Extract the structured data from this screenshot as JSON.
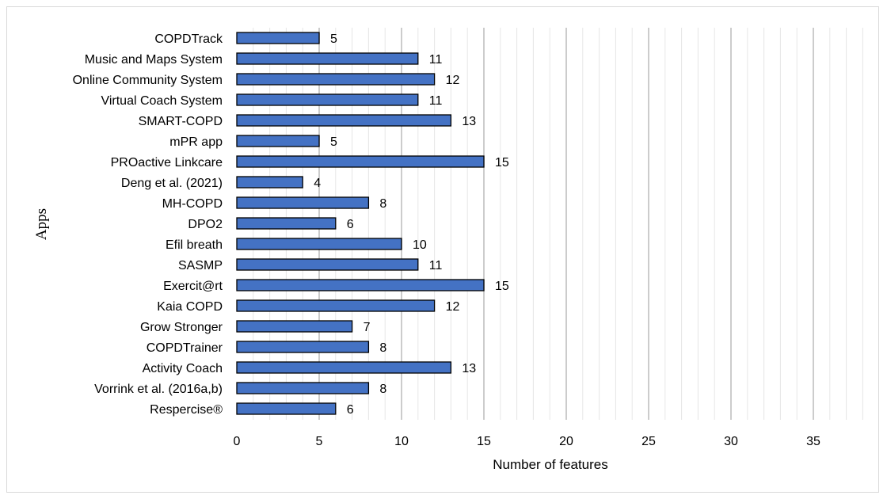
{
  "chart_data": {
    "type": "bar",
    "orientation": "horizontal",
    "title": "",
    "xlabel": "Number of features",
    "ylabel": "Apps",
    "xlim": [
      0,
      38
    ],
    "xticks": [
      0,
      5,
      10,
      15,
      20,
      25,
      30,
      35
    ],
    "grid": "vertical major and minor gridlines",
    "legend": "none",
    "bar_color": "#4472C4",
    "bar_edge_color": "#000000",
    "categories": [
      "COPDTrack",
      "Music and Maps System",
      "Online Community System",
      "Virtual Coach System",
      "SMART-COPD",
      "mPR app",
      "PROactive Linkcare",
      "Deng et al. (2021)",
      "MH-COPD",
      "DPO2",
      "Efil breath",
      "SASMP",
      "Exercit@rt",
      "Kaia COPD",
      "Grow Stronger",
      "COPDTrainer",
      "Activity Coach",
      "Vorrink et al. (2016a,b)",
      "Respercise®"
    ],
    "values": [
      5,
      11,
      12,
      11,
      13,
      5,
      15,
      4,
      8,
      6,
      10,
      11,
      15,
      12,
      7,
      8,
      13,
      8,
      6
    ]
  }
}
